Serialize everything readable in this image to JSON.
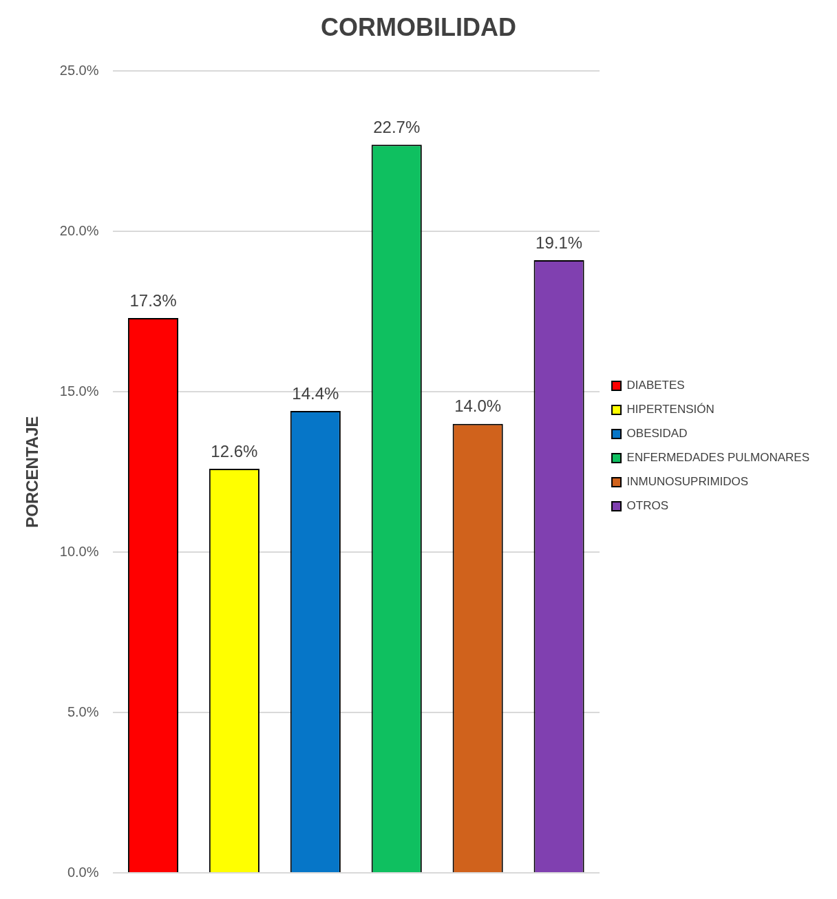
{
  "chart_data": {
    "type": "bar",
    "title": "CORMOBILIDAD",
    "ylabel": "PORCENTAJE",
    "categories": [
      null,
      null,
      null,
      null,
      null,
      null
    ],
    "series": [
      {
        "name": "DIABETES",
        "color": "#ff0000",
        "values": [
          17.3,
          null,
          null,
          null,
          null,
          null
        ],
        "value_labels": [
          "17.3%",
          null,
          null,
          null,
          null,
          null
        ]
      },
      {
        "name": "HIPERTENSIÓN",
        "color": "#ffff00",
        "values": [
          null,
          12.6,
          null,
          null,
          null,
          null
        ],
        "value_labels": [
          null,
          "12.6%",
          null,
          null,
          null,
          null
        ]
      },
      {
        "name": "OBESIDAD",
        "color": "#0676c8",
        "values": [
          null,
          null,
          14.4,
          null,
          null,
          null
        ],
        "value_labels": [
          null,
          null,
          "14.4%",
          null,
          null,
          null
        ]
      },
      {
        "name": "ENFERMEDADES PULMONARES",
        "color": "#0fc060",
        "values": [
          null,
          null,
          null,
          22.7,
          null,
          null
        ],
        "value_labels": [
          null,
          null,
          null,
          "22.7%",
          null,
          null
        ]
      },
      {
        "name": "INMUNOSUPRIMIDOS",
        "color": "#d0621c",
        "values": [
          null,
          null,
          null,
          null,
          14.0,
          null
        ],
        "value_labels": [
          null,
          null,
          null,
          null,
          "14.0%",
          null
        ]
      },
      {
        "name": "OTROS",
        "color": "#8040b0",
        "values": [
          null,
          null,
          null,
          null,
          null,
          19.1
        ],
        "value_labels": [
          null,
          null,
          null,
          null,
          null,
          "19.1%"
        ]
      }
    ],
    "ylim": [
      0,
      25
    ],
    "yticks": [
      {
        "value": 0,
        "label": "0.0%"
      },
      {
        "value": 5,
        "label": "5.0%"
      },
      {
        "value": 10,
        "label": "10.0%"
      },
      {
        "value": 15,
        "label": "15.0%"
      },
      {
        "value": 20,
        "label": "20.0%"
      },
      {
        "value": 25,
        "label": "25.0%"
      }
    ],
    "grid": "y",
    "legend": "right",
    "tick_labels": "y"
  }
}
